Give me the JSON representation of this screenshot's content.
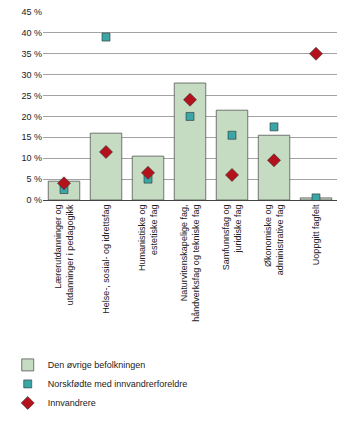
{
  "chart_data": {
    "type": "bar",
    "categories": [
      "Lærerutdanninger og\nutdanninger i pedagogikk",
      "Helse-, sosial- og idrettsfag",
      "Humanistiske og\nestetiske fag",
      "Naturvitenskapelige fag,\nhåndverksfag og tekniske fag",
      "Samfunnsfag og\njuridiske fag",
      "Økonomiske og\nadministrative fag",
      "Uoppgitt fagfelt"
    ],
    "series": [
      {
        "name": "Den øvrige befolkningen",
        "type": "bar",
        "color": "#c6dcc2",
        "values": [
          4.5,
          16,
          10.5,
          28,
          21.5,
          15.5,
          0.5
        ]
      },
      {
        "name": "Norskfødte med innvandrerforeldre",
        "type": "scatter",
        "marker": "square",
        "color": "#3aa6a6",
        "values": [
          2.5,
          39,
          5,
          20,
          15.5,
          17.5,
          0.5
        ]
      },
      {
        "name": "Innvandrere",
        "type": "scatter",
        "marker": "diamond",
        "color": "#b3121c",
        "values": [
          4,
          11.5,
          6.5,
          24,
          6,
          9.5,
          35
        ]
      }
    ],
    "ylim": [
      0,
      45
    ],
    "yticks": [
      {
        "value": 0,
        "label": "0 %"
      },
      {
        "value": 5,
        "label": "5 %"
      },
      {
        "value": 10,
        "label": "10 %"
      },
      {
        "value": 15,
        "label": "15 %"
      },
      {
        "value": 20,
        "label": "20 %"
      },
      {
        "value": 25,
        "label": "25 %"
      },
      {
        "value": 30,
        "label": "30 %"
      },
      {
        "value": 35,
        "label": "35 %"
      },
      {
        "value": 40,
        "label": "40 %"
      },
      {
        "value": 45,
        "label": "45 %"
      }
    ],
    "grid": true,
    "legend": "bottom"
  }
}
